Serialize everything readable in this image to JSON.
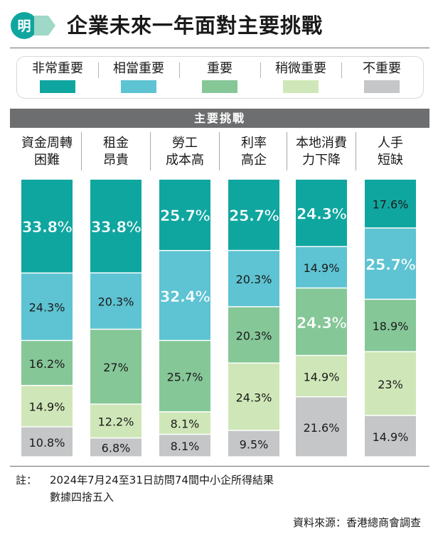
{
  "header": {
    "logo_text": "明",
    "title": "企業未來一年面對主要挑戰"
  },
  "legend": [
    {
      "label": "非常重要",
      "color": "#10a6a0"
    },
    {
      "label": "相當重要",
      "color": "#5ec3d2"
    },
    {
      "label": "重要",
      "color": "#86c798"
    },
    {
      "label": "稍微重要",
      "color": "#cfe7b8"
    },
    {
      "label": "不重要",
      "color": "#c5c6c7"
    }
  ],
  "section_title": "主要挑戰",
  "chart_data": {
    "type": "bar",
    "stacked": true,
    "orientation": "vertical",
    "unit": "%",
    "categories": [
      "資金周轉\n困難",
      "租金\n昂貴",
      "勞工\n成本高",
      "利率\n高企",
      "本地消費\n力下降",
      "人手\n短缺"
    ],
    "series": [
      {
        "name": "非常重要",
        "color": "#10a6a0",
        "values": [
          33.8,
          33.8,
          25.7,
          25.7,
          24.3,
          17.6
        ],
        "labels": [
          "33.8%",
          "33.8%",
          "25.7%",
          "25.7%",
          "24.3%",
          "17.6%"
        ]
      },
      {
        "name": "相當重要",
        "color": "#5ec3d2",
        "values": [
          24.3,
          20.3,
          32.4,
          20.3,
          14.9,
          25.7
        ],
        "labels": [
          "24.3%",
          "20.3%",
          "32.4%",
          "20.3%",
          "14.9%",
          "25.7%"
        ]
      },
      {
        "name": "重要",
        "color": "#86c798",
        "values": [
          16.2,
          27,
          25.7,
          20.3,
          24.3,
          18.9
        ],
        "labels": [
          "16.2%",
          "27%",
          "25.7%",
          "20.3%",
          "24.3%",
          "18.9%"
        ]
      },
      {
        "name": "稍微重要",
        "color": "#cfe7b8",
        "values": [
          14.9,
          12.2,
          8.1,
          24.3,
          14.9,
          23
        ],
        "labels": [
          "14.9%",
          "12.2%",
          "8.1%",
          "24.3%",
          "14.9%",
          "23%"
        ]
      },
      {
        "name": "不重要",
        "color": "#c5c6c7",
        "values": [
          10.8,
          6.8,
          8.1,
          9.5,
          21.6,
          14.9
        ],
        "labels": [
          "10.8%",
          "6.8%",
          "8.1%",
          "9.5%",
          "21.6%",
          "14.9%"
        ]
      }
    ],
    "highlighted": [
      [
        true,
        true,
        true,
        true,
        true,
        false
      ],
      [
        false,
        false,
        true,
        false,
        false,
        true
      ],
      [
        false,
        false,
        false,
        false,
        true,
        false
      ],
      [
        false,
        false,
        false,
        false,
        false,
        false
      ],
      [
        false,
        false,
        false,
        false,
        false,
        false
      ]
    ]
  },
  "notes": {
    "label": "註：",
    "lines": [
      "2024年7月24至31日訪問74間中小企所得結果",
      "數據四捨五入"
    ]
  },
  "source": "資料來源：香港總商會調查"
}
